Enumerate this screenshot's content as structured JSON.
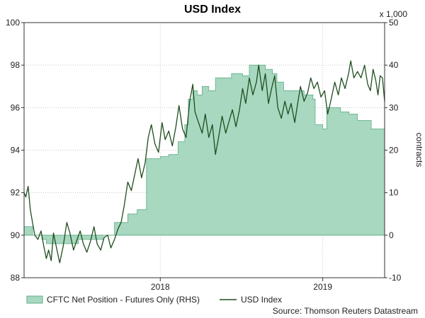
{
  "chart_data": {
    "type": "area",
    "title": "USD Index",
    "left_axis": {
      "ylim": [
        88,
        100
      ],
      "ticks": [
        88,
        90,
        92,
        94,
        96,
        98,
        100
      ]
    },
    "right_axis": {
      "ylim": [
        -10,
        50
      ],
      "ticks": [
        -10,
        0,
        10,
        20,
        30,
        40,
        50
      ],
      "label": "contracts",
      "multiplier": "x 1,000"
    },
    "x_axis": {
      "start": "2017-03-01",
      "end": "2019-05-20",
      "tick_labels": [
        "2018",
        "2019"
      ],
      "tick_dates": [
        "2018-01-01",
        "2019-01-01"
      ]
    },
    "grid": "dotted, both axes",
    "legend_position": "bottom-left",
    "source": "Source: Thomson Reuters Datastream",
    "series": [
      {
        "name": "CFTC Net Position - Futures Only (RHS)",
        "axis": "right",
        "kind": "area",
        "color": "#a8d8c0",
        "edge_color": "#5fae8a",
        "points": [
          [
            "2017-03-01",
            2
          ],
          [
            "2017-03-10",
            2
          ],
          [
            "2017-03-20",
            0
          ],
          [
            "2017-04-10",
            -1
          ],
          [
            "2017-04-20",
            -2
          ],
          [
            "2017-06-20",
            -2
          ],
          [
            "2017-07-01",
            -1
          ],
          [
            "2017-08-10",
            -1
          ],
          [
            "2017-08-25",
            0
          ],
          [
            "2017-09-20",
            3
          ],
          [
            "2017-10-20",
            5
          ],
          [
            "2017-11-01",
            5
          ],
          [
            "2017-11-10",
            6
          ],
          [
            "2017-11-28",
            6
          ],
          [
            "2017-12-01",
            18
          ],
          [
            "2017-12-10",
            18
          ],
          [
            "2018-01-01",
            18.5
          ],
          [
            "2018-01-20",
            19
          ],
          [
            "2018-02-10",
            22
          ],
          [
            "2018-02-25",
            26
          ],
          [
            "2018-03-05",
            32
          ],
          [
            "2018-03-15",
            34
          ],
          [
            "2018-03-25",
            33
          ],
          [
            "2018-04-05",
            35
          ],
          [
            "2018-04-20",
            34
          ],
          [
            "2018-05-05",
            37
          ],
          [
            "2018-05-25",
            37
          ],
          [
            "2018-06-10",
            38
          ],
          [
            "2018-07-05",
            37.5
          ],
          [
            "2018-07-20",
            40
          ],
          [
            "2018-08-05",
            40
          ],
          [
            "2018-08-25",
            39
          ],
          [
            "2018-09-10",
            38
          ],
          [
            "2018-09-20",
            36
          ],
          [
            "2018-10-05",
            34
          ],
          [
            "2018-11-01",
            34
          ],
          [
            "2018-11-20",
            33
          ],
          [
            "2018-12-10",
            32
          ],
          [
            "2018-12-15",
            26
          ],
          [
            "2019-01-01",
            25
          ],
          [
            "2019-01-10",
            30
          ],
          [
            "2019-02-10",
            29
          ],
          [
            "2019-03-01",
            28.5
          ],
          [
            "2019-03-20",
            27
          ],
          [
            "2019-04-05",
            27
          ],
          [
            "2019-04-20",
            25
          ],
          [
            "2019-05-20",
            25
          ]
        ]
      },
      {
        "name": "USD Index",
        "axis": "left",
        "kind": "line",
        "color": "#1f4d1f",
        "points": [
          [
            "2017-03-01",
            92.0
          ],
          [
            "2017-03-05",
            91.8
          ],
          [
            "2017-03-10",
            92.3
          ],
          [
            "2017-03-15",
            91.2
          ],
          [
            "2017-03-20",
            90.6
          ],
          [
            "2017-03-25",
            90.0
          ],
          [
            "2017-04-01",
            89.8
          ],
          [
            "2017-04-08",
            90.2
          ],
          [
            "2017-04-15",
            89.4
          ],
          [
            "2017-04-20",
            88.9
          ],
          [
            "2017-04-25",
            89.3
          ],
          [
            "2017-05-01",
            88.8
          ],
          [
            "2017-05-06",
            90.1
          ],
          [
            "2017-05-12",
            89.5
          ],
          [
            "2017-05-20",
            88.7
          ],
          [
            "2017-05-28",
            89.5
          ],
          [
            "2017-06-05",
            90.6
          ],
          [
            "2017-06-12",
            90.1
          ],
          [
            "2017-06-20",
            89.3
          ],
          [
            "2017-06-28",
            89.8
          ],
          [
            "2017-07-05",
            90.2
          ],
          [
            "2017-07-12",
            89.6
          ],
          [
            "2017-07-20",
            89.2
          ],
          [
            "2017-07-28",
            89.7
          ],
          [
            "2017-08-05",
            90.4
          ],
          [
            "2017-08-12",
            89.6
          ],
          [
            "2017-08-20",
            89.3
          ],
          [
            "2017-08-28",
            89.9
          ],
          [
            "2017-09-05",
            90.0
          ],
          [
            "2017-09-12",
            89.4
          ],
          [
            "2017-09-20",
            89.8
          ],
          [
            "2017-09-28",
            90.3
          ],
          [
            "2017-10-05",
            90.6
          ],
          [
            "2017-10-12",
            91.4
          ],
          [
            "2017-10-20",
            92.5
          ],
          [
            "2017-10-28",
            92.1
          ],
          [
            "2017-11-05",
            92.9
          ],
          [
            "2017-11-12",
            93.6
          ],
          [
            "2017-11-20",
            92.7
          ],
          [
            "2017-11-28",
            93.4
          ],
          [
            "2017-12-05",
            94.6
          ],
          [
            "2017-12-12",
            95.2
          ],
          [
            "2017-12-20",
            94.3
          ],
          [
            "2017-12-28",
            93.9
          ],
          [
            "2018-01-05",
            95.3
          ],
          [
            "2018-01-12",
            94.5
          ],
          [
            "2018-01-20",
            94.9
          ],
          [
            "2018-01-28",
            94.2
          ],
          [
            "2018-02-05",
            95.1
          ],
          [
            "2018-02-12",
            96.1
          ],
          [
            "2018-02-20",
            95.0
          ],
          [
            "2018-02-28",
            94.6
          ],
          [
            "2018-03-08",
            96.3
          ],
          [
            "2018-03-15",
            97.1
          ],
          [
            "2018-03-20",
            95.8
          ],
          [
            "2018-03-28",
            95.3
          ],
          [
            "2018-04-05",
            94.8
          ],
          [
            "2018-04-12",
            95.7
          ],
          [
            "2018-04-20",
            94.6
          ],
          [
            "2018-04-28",
            95.2
          ],
          [
            "2018-05-05",
            93.8
          ],
          [
            "2018-05-12",
            94.6
          ],
          [
            "2018-05-20",
            95.6
          ],
          [
            "2018-05-28",
            94.8
          ],
          [
            "2018-06-05",
            95.4
          ],
          [
            "2018-06-12",
            95.9
          ],
          [
            "2018-06-20",
            95.1
          ],
          [
            "2018-06-28",
            95.9
          ],
          [
            "2018-07-05",
            96.9
          ],
          [
            "2018-07-12",
            96.2
          ],
          [
            "2018-07-20",
            97.4
          ],
          [
            "2018-07-28",
            96.6
          ],
          [
            "2018-08-05",
            97.2
          ],
          [
            "2018-08-10",
            98.0
          ],
          [
            "2018-08-18",
            96.8
          ],
          [
            "2018-08-25",
            97.6
          ],
          [
            "2018-09-01",
            96.2
          ],
          [
            "2018-09-08",
            96.9
          ],
          [
            "2018-09-15",
            97.5
          ],
          [
            "2018-09-22",
            96.0
          ],
          [
            "2018-09-30",
            95.5
          ],
          [
            "2018-10-08",
            96.3
          ],
          [
            "2018-10-15",
            95.7
          ],
          [
            "2018-10-22",
            96.2
          ],
          [
            "2018-10-30",
            95.3
          ],
          [
            "2018-11-05",
            96.1
          ],
          [
            "2018-11-12",
            97.0
          ],
          [
            "2018-11-20",
            96.3
          ],
          [
            "2018-11-28",
            96.7
          ],
          [
            "2018-12-05",
            97.4
          ],
          [
            "2018-12-12",
            96.9
          ],
          [
            "2018-12-20",
            97.2
          ],
          [
            "2018-12-28",
            96.5
          ],
          [
            "2019-01-05",
            96.8
          ],
          [
            "2019-01-12",
            95.7
          ],
          [
            "2019-01-20",
            96.4
          ],
          [
            "2019-01-28",
            97.2
          ],
          [
            "2019-02-05",
            96.6
          ],
          [
            "2019-02-12",
            97.4
          ],
          [
            "2019-02-20",
            96.9
          ],
          [
            "2019-02-28",
            97.6
          ],
          [
            "2019-03-05",
            98.2
          ],
          [
            "2019-03-12",
            97.4
          ],
          [
            "2019-03-20",
            97.7
          ],
          [
            "2019-03-28",
            97.4
          ],
          [
            "2019-04-05",
            98.0
          ],
          [
            "2019-04-12",
            97.1
          ],
          [
            "2019-04-18",
            96.8
          ],
          [
            "2019-04-24",
            97.8
          ],
          [
            "2019-04-30",
            97.3
          ],
          [
            "2019-05-05",
            96.6
          ],
          [
            "2019-05-10",
            97.5
          ],
          [
            "2019-05-15",
            97.4
          ],
          [
            "2019-05-20",
            96.3
          ]
        ]
      }
    ]
  }
}
